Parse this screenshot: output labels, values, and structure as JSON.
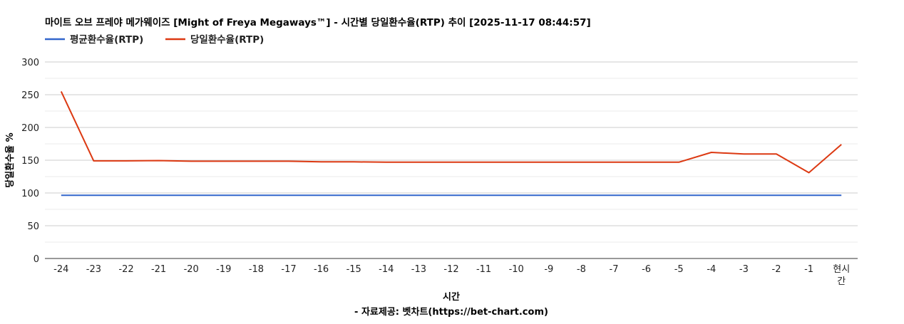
{
  "chart_data": {
    "type": "line",
    "title": "마이트 오브 프레야 메가웨이즈 [Might of Freya Megaways™] - 시간별 당일환수율(RTP) 추이 [2025-11-17 08:44:57]",
    "xlabel": "시간",
    "ylabel": "당일환수율 %",
    "source": "- 자료제공: 벳차트(https://bet-chart.com)",
    "categories": [
      "-24",
      "-23",
      "-22",
      "-21",
      "-20",
      "-19",
      "-18",
      "-17",
      "-16",
      "-15",
      "-14",
      "-13",
      "-12",
      "-11",
      "-10",
      "-9",
      "-8",
      "-7",
      "-6",
      "-5",
      "-4",
      "-3",
      "-2",
      "-1",
      "현시간"
    ],
    "ylim": [
      0,
      300
    ],
    "yticks": [
      0,
      50,
      100,
      150,
      200,
      250,
      300
    ],
    "grid": true,
    "legend": "top-left",
    "series": [
      {
        "name": "평균환수율(RTP)",
        "color": "#3366cc",
        "values": [
          96.5,
          96.5,
          96.5,
          96.5,
          96.5,
          96.5,
          96.5,
          96.5,
          96.5,
          96.5,
          96.5,
          96.5,
          96.5,
          96.5,
          96.5,
          96.5,
          96.5,
          96.5,
          96.5,
          96.5,
          96.5,
          96.5,
          96.5,
          96.5,
          96.5
        ]
      },
      {
        "name": "당일환수율(RTP)",
        "color": "#dc3912",
        "values": [
          255,
          149,
          149,
          149.5,
          148.5,
          148.5,
          148.5,
          148.5,
          147.5,
          147.5,
          147,
          147,
          147,
          147,
          147,
          147,
          147,
          147,
          147,
          147,
          162,
          159.5,
          159.5,
          131,
          174
        ]
      }
    ]
  }
}
